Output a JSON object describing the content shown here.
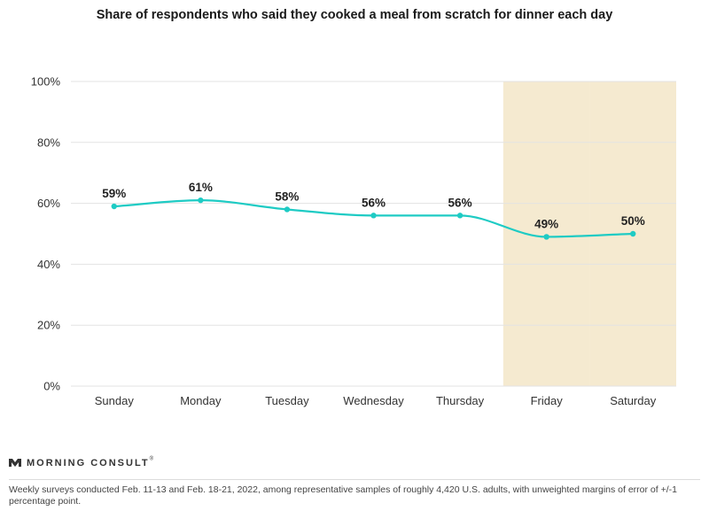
{
  "chart_data": {
    "type": "line",
    "title": "Share of respondents who said they cooked a meal from scratch for dinner each day",
    "categories": [
      "Sunday",
      "Monday",
      "Tuesday",
      "Wednesday",
      "Thursday",
      "Friday",
      "Saturday"
    ],
    "values": [
      59,
      61,
      58,
      56,
      56,
      49,
      50
    ],
    "data_labels": [
      "59%",
      "61%",
      "58%",
      "56%",
      "56%",
      "49%",
      "50%"
    ],
    "yticks": [
      "0%",
      "20%",
      "40%",
      "60%",
      "80%",
      "100%"
    ],
    "ylim": [
      0,
      100
    ],
    "highlight_categories": [
      "Friday",
      "Saturday"
    ],
    "xlabel": "",
    "ylabel": "",
    "grid": true
  },
  "colors": {
    "line": "#1ecbc4",
    "highlight": "#f5ead0",
    "grid": "#e3e3e3"
  },
  "brand": {
    "name": "MORNING CONSULT",
    "mark": "®"
  },
  "footnote": "Weekly surveys conducted Feb. 11-13 and Feb. 18-21, 2022, among representative samples of roughly 4,420 U.S. adults, with unweighted margins of error of +/-1 percentage point."
}
